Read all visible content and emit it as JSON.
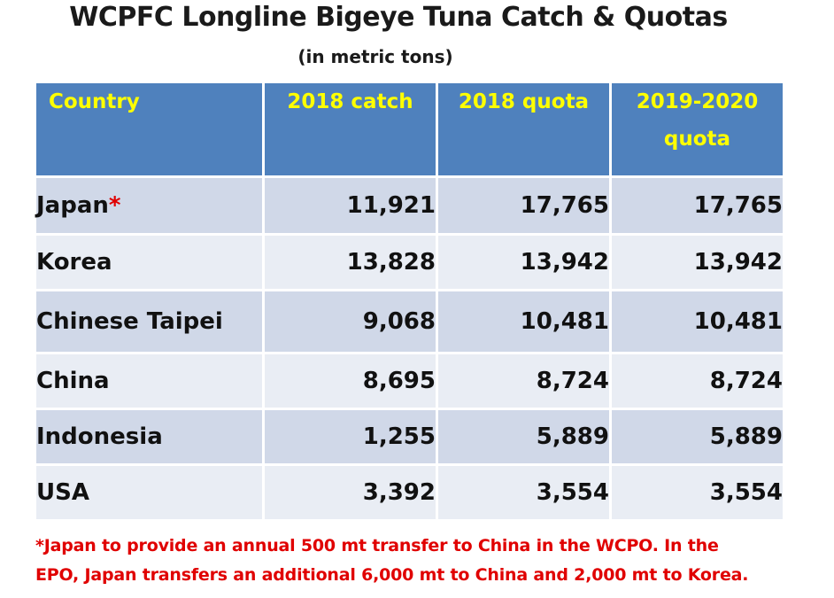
{
  "title": "WCPFC Longline Bigeye Tuna Catch & Quotas",
  "subtitle": "(in metric tons)",
  "table": {
    "headers": {
      "country": "Country",
      "catch_2018": "2018 catch",
      "quota_2018": "2018 quota",
      "quota_2019_2020_line1": "2019-2020",
      "quota_2019_2020_line2": "quota"
    },
    "rows": [
      {
        "country": "Japan",
        "marker": "*",
        "catch_2018": "11,921",
        "quota_2018": "17,765",
        "quota_2019_2020": "17,765"
      },
      {
        "country": "Korea",
        "marker": "",
        "catch_2018": "13,828",
        "quota_2018": "13,942",
        "quota_2019_2020": "13,942"
      },
      {
        "country": "Chinese Taipei",
        "marker": "",
        "catch_2018": "9,068",
        "quota_2018": "10,481",
        "quota_2019_2020": "10,481"
      },
      {
        "country": "China",
        "marker": "",
        "catch_2018": "8,695",
        "quota_2018": "8,724",
        "quota_2019_2020": "8,724"
      },
      {
        "country": "Indonesia",
        "marker": "",
        "catch_2018": "1,255",
        "quota_2018": "5,889",
        "quota_2019_2020": "5,889"
      },
      {
        "country": "USA",
        "marker": "",
        "catch_2018": "3,392",
        "quota_2018": "3,554",
        "quota_2019_2020": "3,554"
      }
    ]
  },
  "footnote": {
    "line1": "*Japan to provide an annual 500 mt transfer to China in the WCPO. In the",
    "line2": "EPO, Japan transfers an additional 6,000 mt to China and 2,000 mt to Korea."
  },
  "colors": {
    "header_bg": "#4f81bd",
    "header_text": "#ffff00",
    "row_odd": "#d0d8e8",
    "row_even": "#e9edf4",
    "footnote_text": "#e00000"
  }
}
